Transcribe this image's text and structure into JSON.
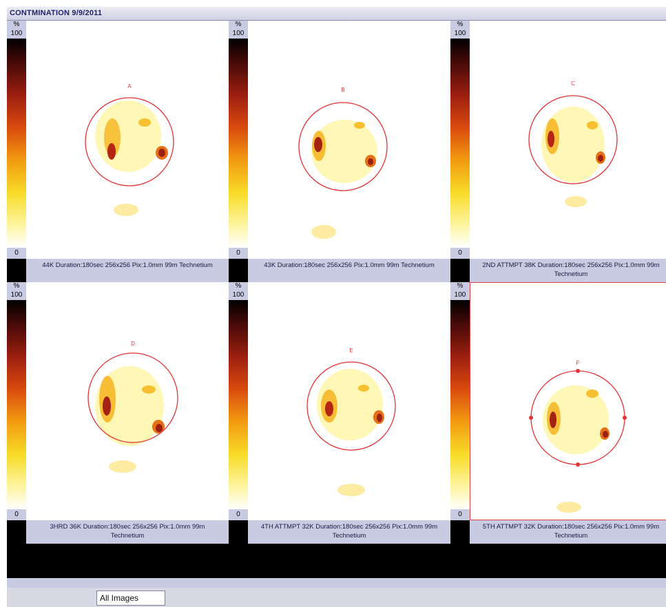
{
  "window": {
    "title": "CONTMINATION 9/9/2011"
  },
  "colorbar": {
    "unit": "%",
    "max": "100",
    "min": "0"
  },
  "panels": [
    {
      "label": "A",
      "caption_line1": "44K Duration:180sec 256x256 Pix:1.0mm 99m Technetium",
      "caption_line2": ""
    },
    {
      "label": "B",
      "caption_line1": "43K Duration:180sec 256x256 Pix:1.0mm 99m Technetium",
      "caption_line2": ""
    },
    {
      "label": "C",
      "caption_line1": "2ND ATTMPT 38K Duration:180sec 256x256 Pix:1.0mm 99m",
      "caption_line2": "Technetium"
    },
    {
      "label": "D",
      "caption_line1": "3HRD  36K Duration:180sec 256x256 Pix:1.0mm 99m",
      "caption_line2": "Technetium"
    },
    {
      "label": "E",
      "caption_line1": "4TH ATTMPT 32K Duration:180sec 256x256 Pix:1.0mm 99m",
      "caption_line2": "Technetium"
    },
    {
      "label": "F",
      "caption_line1": "5TH ATTMPT 32K Duration:180sec 256x256 Pix:1.0mm 99m",
      "caption_line2": "Technetium"
    }
  ],
  "footer": {
    "view_select": "All Images"
  },
  "colors": {
    "roi_circle": "#e33232",
    "caption_bg": "#c9cbe3",
    "title_text": "#1e1e6e"
  }
}
